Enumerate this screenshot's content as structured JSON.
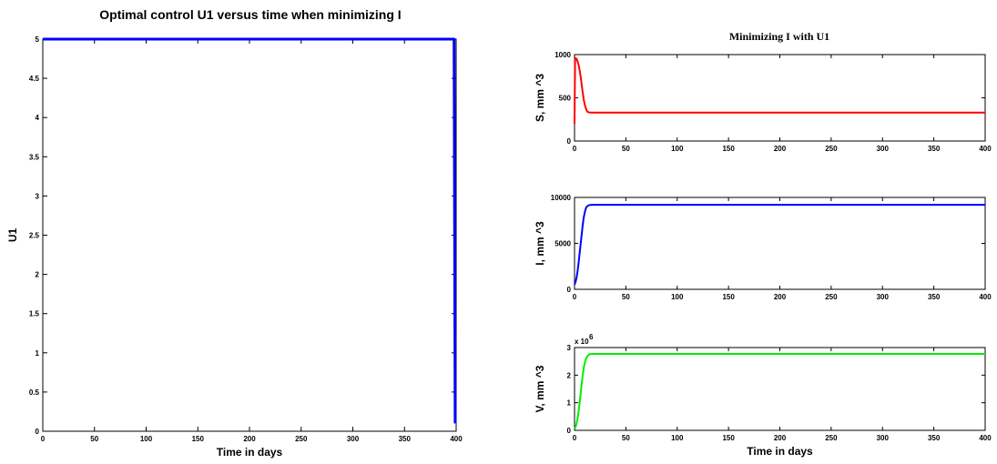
{
  "figure": {
    "left_title": "Optimal control U1 versus time when minimizing I",
    "right_title": "Minimizing I with U1"
  },
  "chart_data": [
    {
      "type": "line",
      "title": "Optimal control U1 versus time when minimizing I",
      "xlabel": "Time in days",
      "ylabel": "U1",
      "xlim": [
        0,
        400
      ],
      "ylim": [
        0,
        5
      ],
      "xticks": [
        0,
        50,
        100,
        150,
        200,
        250,
        300,
        350,
        400
      ],
      "yticks": [
        0,
        0.5,
        1,
        1.5,
        2,
        2.5,
        3,
        3.5,
        4,
        4.5,
        5
      ],
      "ytick_labels": [
        "0",
        "0.5",
        "1",
        "1.5",
        "2",
        "2.5",
        "3",
        "3.5",
        "4",
        "4.5",
        "5"
      ],
      "color": "#0000ff",
      "x": [
        0,
        397,
        398,
        399
      ],
      "y": [
        5,
        5,
        5,
        0.1
      ]
    },
    {
      "type": "line",
      "title": "Minimizing I with U1",
      "xlabel": "",
      "ylabel": "S, mm^-3",
      "ylabel_display": "S, mm   ^3",
      "xlim": [
        0,
        400
      ],
      "ylim": [
        0,
        1000
      ],
      "xticks": [
        0,
        50,
        100,
        150,
        200,
        250,
        300,
        350,
        400
      ],
      "yticks": [
        0,
        500,
        1000
      ],
      "ytick_labels": [
        "0",
        "500",
        "1000"
      ],
      "color": "#ff0000",
      "x": [
        0,
        0.5,
        1,
        2,
        3,
        4,
        5,
        6,
        7,
        8,
        9,
        10,
        11,
        12,
        13,
        15,
        20,
        400
      ],
      "y": [
        200,
        950,
        960,
        950,
        920,
        880,
        820,
        740,
        650,
        560,
        480,
        420,
        380,
        350,
        335,
        330,
        330,
        330
      ]
    },
    {
      "type": "line",
      "title": "",
      "xlabel": "",
      "ylabel": "I, mm^-3",
      "ylabel_display": "I, mm   ^3",
      "xlim": [
        0,
        400
      ],
      "ylim": [
        0,
        10000
      ],
      "xticks": [
        0,
        50,
        100,
        150,
        200,
        250,
        300,
        350,
        400
      ],
      "yticks": [
        0,
        5000,
        10000
      ],
      "ytick_labels": [
        "0",
        "5000",
        "10000"
      ],
      "color": "#0000ff",
      "x": [
        0,
        1,
        2,
        3,
        4,
        5,
        6,
        7,
        8,
        9,
        10,
        11,
        12,
        13,
        14,
        15,
        17,
        20,
        400
      ],
      "y": [
        500,
        800,
        1300,
        2000,
        2900,
        3900,
        5000,
        6000,
        7000,
        7800,
        8400,
        8800,
        9000,
        9100,
        9150,
        9180,
        9200,
        9200,
        9200
      ]
    },
    {
      "type": "line",
      "title": "",
      "xlabel": "Time in days",
      "ylabel": "V, mm^-3",
      "ylabel_display": "V, mm   ^3",
      "multiplier": "x 10",
      "multiplier_exp": "6",
      "xlim": [
        0,
        400
      ],
      "ylim": [
        0,
        3
      ],
      "xticks": [
        0,
        50,
        100,
        150,
        200,
        250,
        300,
        350,
        400
      ],
      "yticks": [
        0,
        1,
        2,
        3
      ],
      "ytick_labels": [
        "0",
        "1",
        "2",
        "3"
      ],
      "color": "#00ee00",
      "x": [
        0,
        1,
        2,
        3,
        4,
        5,
        6,
        7,
        8,
        9,
        10,
        11,
        12,
        13,
        14,
        15,
        17,
        20,
        400
      ],
      "y": [
        0.05,
        0.12,
        0.25,
        0.45,
        0.7,
        1.0,
        1.35,
        1.7,
        2.0,
        2.25,
        2.45,
        2.58,
        2.66,
        2.71,
        2.74,
        2.76,
        2.77,
        2.77,
        2.77
      ]
    }
  ]
}
